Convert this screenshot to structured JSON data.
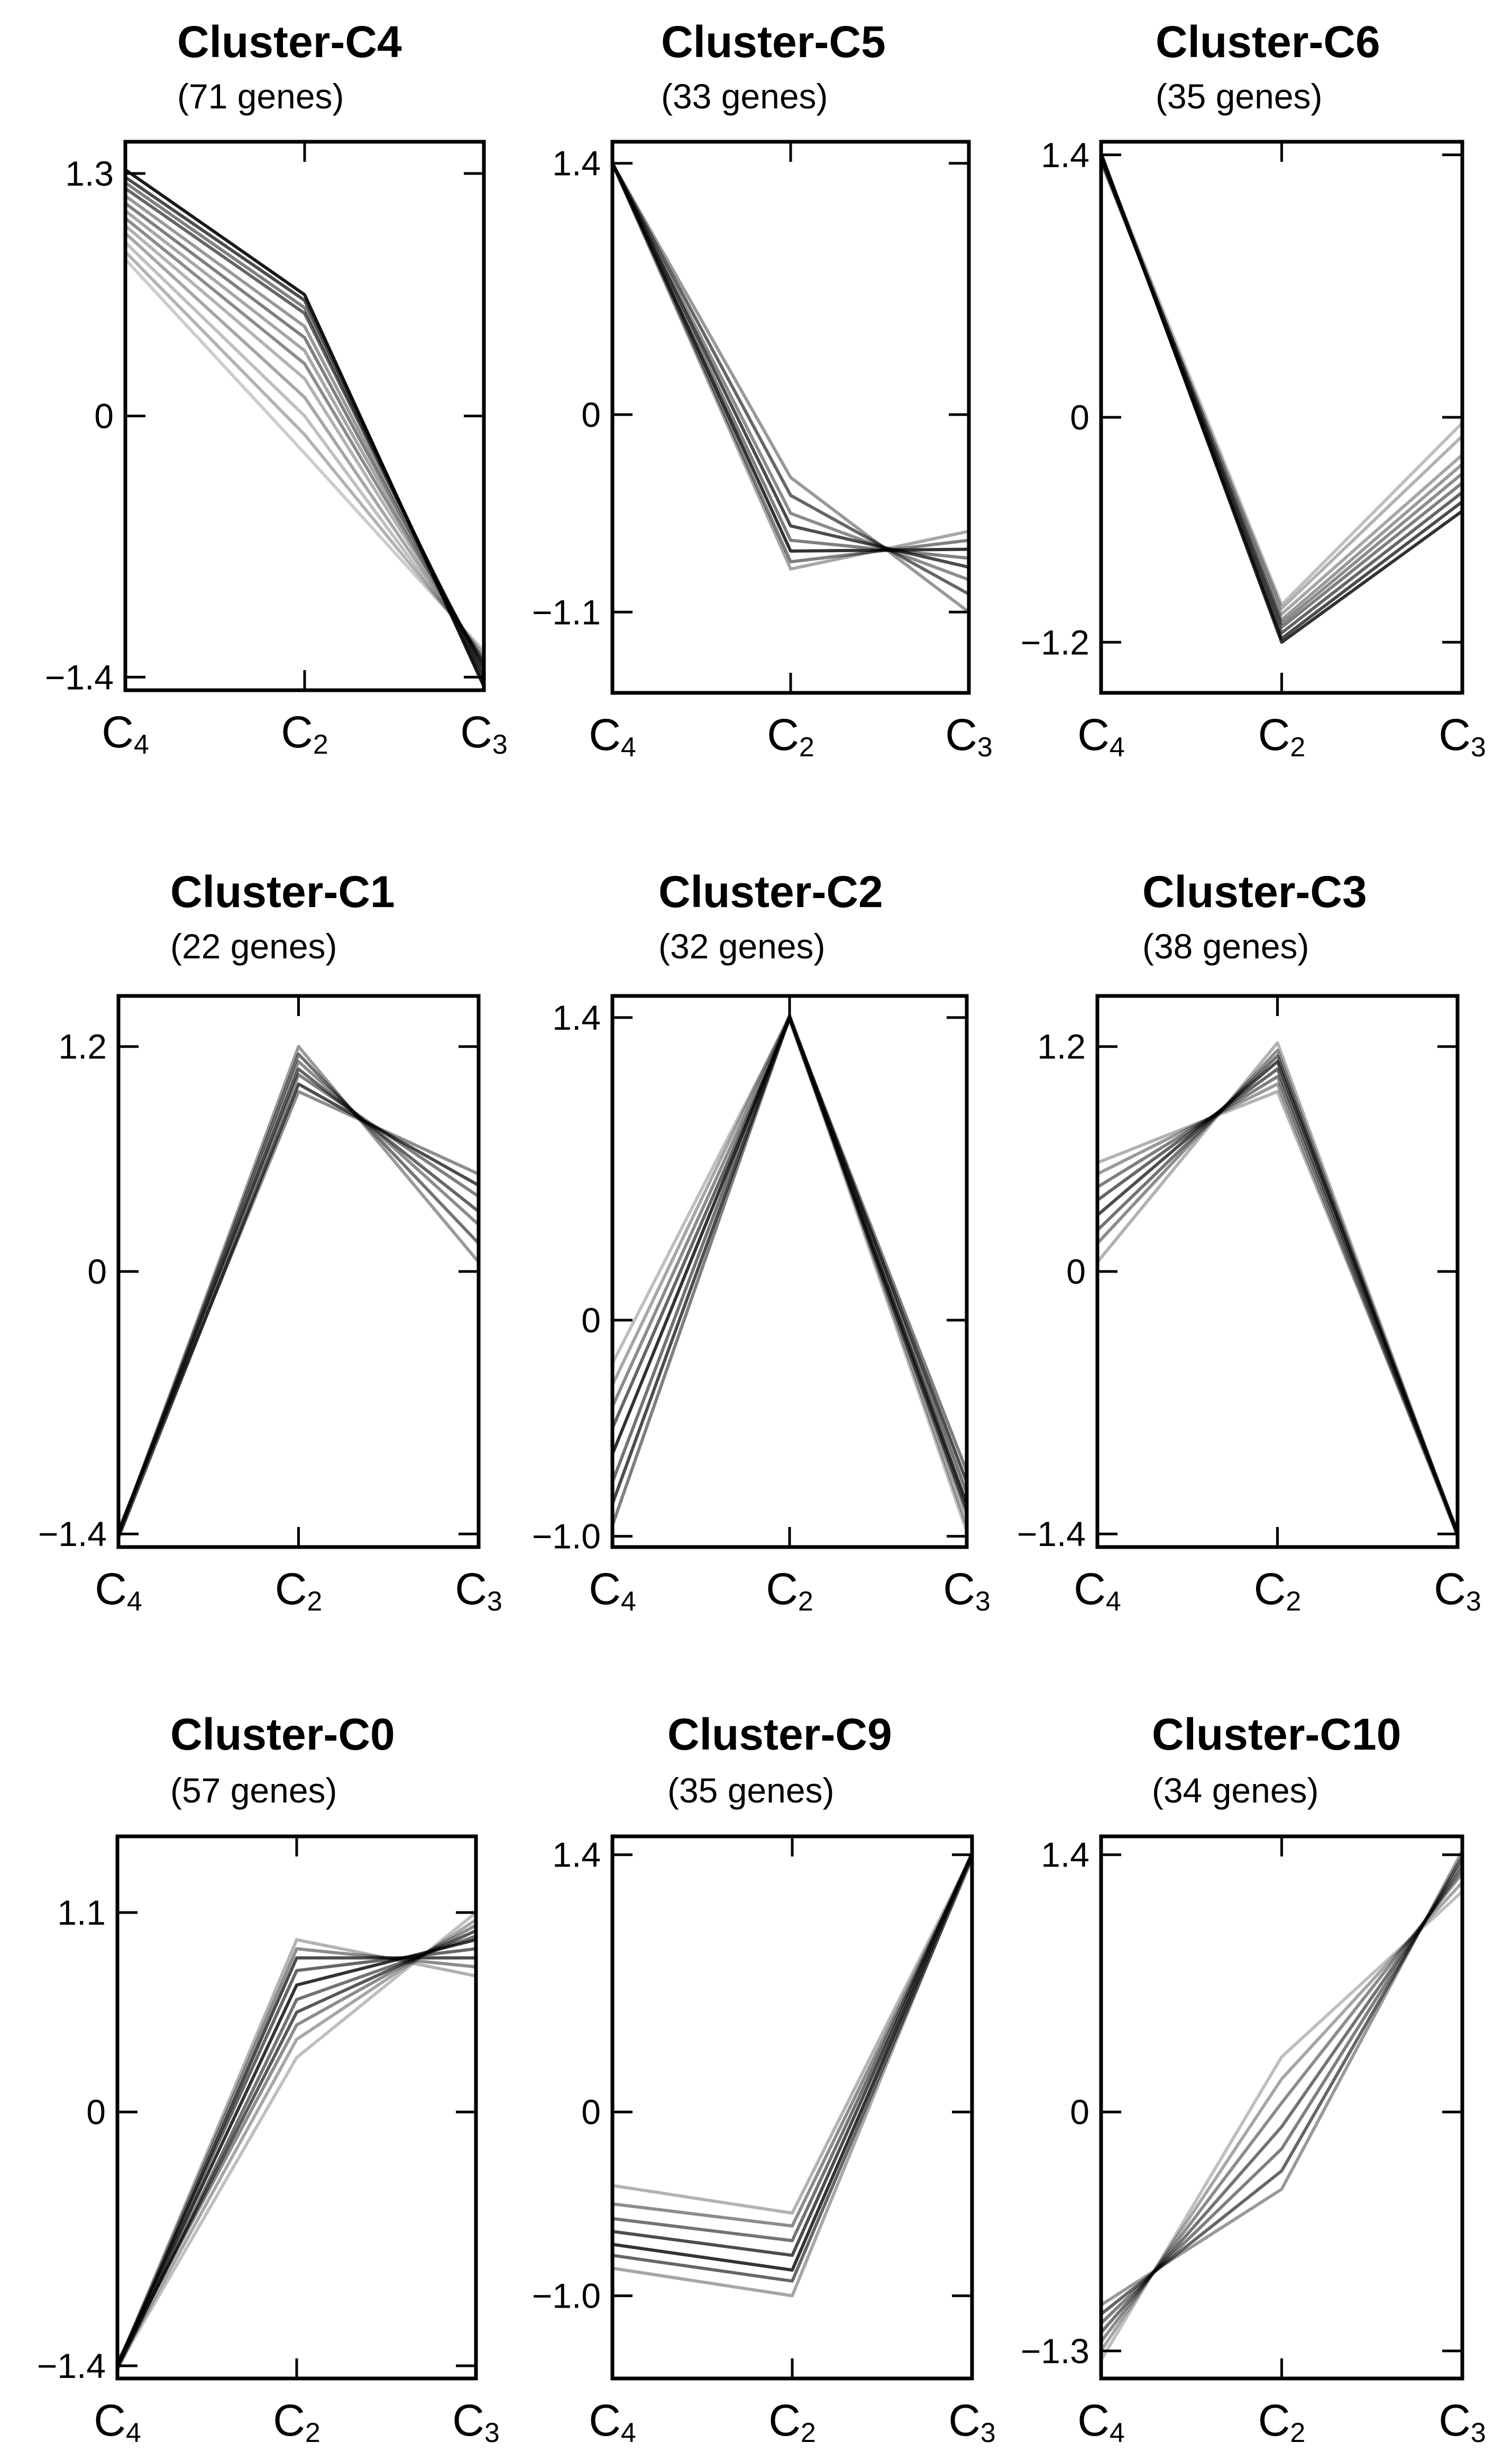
{
  "chart_data": [
    {
      "type": "line",
      "title": "Cluster-C4",
      "subtitle": "(71 genes)",
      "categories": [
        {
          "main": "C",
          "sub": "4"
        },
        {
          "main": "C",
          "sub": "2"
        },
        {
          "main": "C",
          "sub": "3"
        }
      ],
      "yticks": [
        "1.3",
        "0",
        "−1.4"
      ],
      "ytick_values": [
        1.3,
        0,
        -1.4
      ],
      "ylim": [
        -1.47,
        1.47
      ],
      "series": [
        {
          "values": [
            1.32,
            0.65,
            -1.45
          ]
        },
        {
          "values": [
            1.28,
            0.62,
            -1.42
          ]
        },
        {
          "values": [
            1.25,
            0.58,
            -1.4
          ]
        },
        {
          "values": [
            1.22,
            0.55,
            -1.38
          ]
        },
        {
          "values": [
            1.18,
            0.48,
            -1.36
          ]
        },
        {
          "values": [
            1.14,
            0.42,
            -1.35
          ]
        },
        {
          "values": [
            1.1,
            0.35,
            -1.34
          ]
        },
        {
          "values": [
            1.06,
            0.28,
            -1.33
          ]
        },
        {
          "values": [
            1.02,
            0.2,
            -1.32
          ]
        },
        {
          "values": [
            0.98,
            0.1,
            -1.31
          ]
        },
        {
          "values": [
            0.93,
            0.0,
            -1.3
          ]
        },
        {
          "values": [
            0.88,
            -0.1,
            -1.28
          ]
        },
        {
          "values": [
            0.84,
            -0.2,
            -1.26
          ]
        }
      ],
      "opacities": [
        0.9,
        0.7,
        0.5,
        0.6,
        0.4,
        0.5,
        0.35,
        0.45,
        0.3,
        0.35,
        0.25,
        0.3,
        0.2
      ]
    },
    {
      "type": "line",
      "title": "Cluster-C5",
      "subtitle": "(33 genes)",
      "categories": [
        {
          "main": "C",
          "sub": "4"
        },
        {
          "main": "C",
          "sub": "2"
        },
        {
          "main": "C",
          "sub": "3"
        }
      ],
      "yticks": [
        "1.4",
        "0",
        "−1.1"
      ],
      "ytick_values": [
        1.4,
        0,
        -1.1
      ],
      "ylim": [
        -1.55,
        1.52
      ],
      "series": [
        {
          "values": [
            1.4,
            -0.35,
            -1.1
          ]
        },
        {
          "values": [
            1.4,
            -0.45,
            -1.0
          ]
        },
        {
          "values": [
            1.4,
            -0.55,
            -0.92
          ]
        },
        {
          "values": [
            1.4,
            -0.62,
            -0.85
          ]
        },
        {
          "values": [
            1.4,
            -0.7,
            -0.8
          ]
        },
        {
          "values": [
            1.4,
            -0.76,
            -0.75
          ]
        },
        {
          "values": [
            1.4,
            -0.82,
            -0.7
          ]
        },
        {
          "values": [
            1.4,
            -0.86,
            -0.65
          ]
        }
      ],
      "opacities": [
        0.4,
        0.6,
        0.45,
        0.7,
        0.5,
        0.8,
        0.5,
        0.35
      ]
    },
    {
      "type": "line",
      "title": "Cluster-C6",
      "subtitle": "(35 genes)",
      "categories": [
        {
          "main": "C",
          "sub": "4"
        },
        {
          "main": "C",
          "sub": "2"
        },
        {
          "main": "C",
          "sub": "3"
        }
      ],
      "yticks": [
        "1.4",
        "0",
        "−1.2"
      ],
      "ytick_values": [
        1.4,
        0,
        -1.2
      ],
      "ylim": [
        -1.47,
        1.47
      ],
      "series": [
        {
          "values": [
            1.41,
            -1.2,
            -0.5
          ]
        },
        {
          "values": [
            1.4,
            -1.18,
            -0.45
          ]
        },
        {
          "values": [
            1.39,
            -1.15,
            -0.4
          ]
        },
        {
          "values": [
            1.38,
            -1.12,
            -0.35
          ]
        },
        {
          "values": [
            1.4,
            -1.1,
            -0.3
          ]
        },
        {
          "values": [
            1.37,
            -1.08,
            -0.25
          ]
        },
        {
          "values": [
            1.38,
            -1.05,
            -0.2
          ]
        },
        {
          "values": [
            1.36,
            -1.02,
            -0.1
          ]
        },
        {
          "values": [
            1.39,
            -1.0,
            -0.03
          ]
        }
      ],
      "opacities": [
        0.8,
        0.7,
        0.6,
        0.5,
        0.45,
        0.4,
        0.35,
        0.3,
        0.25
      ]
    },
    {
      "type": "line",
      "title": "Cluster-C1",
      "subtitle": "(22 genes)",
      "categories": [
        {
          "main": "C",
          "sub": "4"
        },
        {
          "main": "C",
          "sub": "2"
        },
        {
          "main": "C",
          "sub": "3"
        }
      ],
      "yticks": [
        "1.2",
        "0",
        "−1.4"
      ],
      "ytick_values": [
        1.2,
        0,
        -1.4
      ],
      "ylim": [
        -1.47,
        1.47
      ],
      "series": [
        {
          "values": [
            -1.4,
            1.2,
            0.05
          ]
        },
        {
          "values": [
            -1.4,
            1.16,
            0.15
          ]
        },
        {
          "values": [
            -1.41,
            1.12,
            0.25
          ]
        },
        {
          "values": [
            -1.39,
            1.08,
            0.32
          ]
        },
        {
          "values": [
            -1.4,
            1.05,
            0.4
          ]
        },
        {
          "values": [
            -1.42,
            1.0,
            0.46
          ]
        },
        {
          "values": [
            -1.38,
            0.96,
            0.52
          ]
        }
      ],
      "opacities": [
        0.4,
        0.55,
        0.45,
        0.6,
        0.5,
        0.7,
        0.45
      ]
    },
    {
      "type": "line",
      "title": "Cluster-C2",
      "subtitle": "(32 genes)",
      "categories": [
        {
          "main": "C",
          "sub": "4"
        },
        {
          "main": "C",
          "sub": "2"
        },
        {
          "main": "C",
          "sub": "3"
        }
      ],
      "yticks": [
        "1.4",
        "0",
        "−1.0"
      ],
      "ytick_values": [
        1.4,
        0,
        -1.0
      ],
      "ylim": [
        -1.05,
        1.5
      ],
      "series": [
        {
          "values": [
            -0.95,
            1.4,
            -0.7
          ]
        },
        {
          "values": [
            -0.85,
            1.4,
            -0.75
          ]
        },
        {
          "values": [
            -0.75,
            1.41,
            -0.8
          ]
        },
        {
          "values": [
            -0.62,
            1.4,
            -0.85
          ]
        },
        {
          "values": [
            -0.5,
            1.39,
            -0.88
          ]
        },
        {
          "values": [
            -0.4,
            1.4,
            -0.9
          ]
        },
        {
          "values": [
            -0.3,
            1.41,
            -0.95
          ]
        },
        {
          "values": [
            -0.2,
            1.4,
            -0.98
          ]
        }
      ],
      "opacities": [
        0.5,
        0.7,
        0.55,
        0.8,
        0.6,
        0.45,
        0.35,
        0.25
      ]
    },
    {
      "type": "line",
      "title": "Cluster-C3",
      "subtitle": "(38 genes)",
      "categories": [
        {
          "main": "C",
          "sub": "4"
        },
        {
          "main": "C",
          "sub": "2"
        },
        {
          "main": "C",
          "sub": "3"
        }
      ],
      "yticks": [
        "1.2",
        "0",
        "−1.4"
      ],
      "ytick_values": [
        1.2,
        0,
        -1.4
      ],
      "ylim": [
        -1.47,
        1.47
      ],
      "series": [
        {
          "values": [
            0.05,
            1.22,
            -1.4
          ]
        },
        {
          "values": [
            0.15,
            1.18,
            -1.4
          ]
        },
        {
          "values": [
            0.22,
            1.15,
            -1.41
          ]
        },
        {
          "values": [
            0.3,
            1.12,
            -1.39
          ]
        },
        {
          "values": [
            0.38,
            1.08,
            -1.4
          ]
        },
        {
          "values": [
            0.45,
            1.04,
            -1.4
          ]
        },
        {
          "values": [
            0.52,
            1.0,
            -1.41
          ]
        },
        {
          "values": [
            0.58,
            0.96,
            -1.39
          ]
        }
      ],
      "opacities": [
        0.3,
        0.45,
        0.55,
        0.7,
        0.6,
        0.5,
        0.4,
        0.3
      ]
    },
    {
      "type": "line",
      "title": "Cluster-C0",
      "subtitle": "(57 genes)",
      "categories": [
        {
          "main": "C",
          "sub": "4"
        },
        {
          "main": "C",
          "sub": "2"
        },
        {
          "main": "C",
          "sub": "3"
        }
      ],
      "yticks": [
        "1.1",
        "0",
        "−1.4"
      ],
      "ytick_values": [
        1.1,
        0,
        -1.4
      ],
      "ylim": [
        -1.47,
        1.52
      ],
      "series": [
        {
          "values": [
            -1.4,
            0.95,
            0.75
          ]
        },
        {
          "values": [
            -1.4,
            0.9,
            0.8
          ]
        },
        {
          "values": [
            -1.41,
            0.85,
            0.85
          ]
        },
        {
          "values": [
            -1.39,
            0.78,
            0.9
          ]
        },
        {
          "values": [
            -1.4,
            0.7,
            0.95
          ]
        },
        {
          "values": [
            -1.42,
            0.62,
            0.97
          ]
        },
        {
          "values": [
            -1.4,
            0.55,
            1.0
          ]
        },
        {
          "values": [
            -1.38,
            0.48,
            1.03
          ]
        },
        {
          "values": [
            -1.4,
            0.4,
            1.06
          ]
        },
        {
          "values": [
            -1.41,
            0.3,
            1.1
          ]
        }
      ],
      "opacities": [
        0.3,
        0.45,
        0.7,
        0.6,
        0.8,
        0.55,
        0.65,
        0.45,
        0.35,
        0.25
      ]
    },
    {
      "type": "line",
      "title": "Cluster-C9",
      "subtitle": "(35 genes)",
      "categories": [
        {
          "main": "C",
          "sub": "4"
        },
        {
          "main": "C",
          "sub": "2"
        },
        {
          "main": "C",
          "sub": "3"
        }
      ],
      "yticks": [
        "1.4",
        "0",
        "−1.0"
      ],
      "ytick_values": [
        1.4,
        0,
        -1.0
      ],
      "ylim": [
        -1.45,
        1.5
      ],
      "series": [
        {
          "values": [
            -0.4,
            -0.55,
            1.4
          ]
        },
        {
          "values": [
            -0.5,
            -0.62,
            1.39
          ]
        },
        {
          "values": [
            -0.58,
            -0.7,
            1.4
          ]
        },
        {
          "values": [
            -0.65,
            -0.78,
            1.41
          ]
        },
        {
          "values": [
            -0.72,
            -0.86,
            1.4
          ]
        },
        {
          "values": [
            -0.78,
            -0.92,
            1.38
          ]
        },
        {
          "values": [
            -0.85,
            -1.0,
            1.4
          ]
        }
      ],
      "opacities": [
        0.3,
        0.45,
        0.55,
        0.7,
        0.8,
        0.6,
        0.35
      ]
    },
    {
      "type": "line",
      "title": "Cluster-C10",
      "subtitle": "(34 genes)",
      "categories": [
        {
          "main": "C",
          "sub": "4"
        },
        {
          "main": "C",
          "sub": "2"
        },
        {
          "main": "C",
          "sub": "3"
        }
      ],
      "yticks": [
        "1.4",
        "0",
        "−1.3"
      ],
      "ytick_values": [
        1.4,
        0,
        -1.3
      ],
      "ylim": [
        -1.45,
        1.5
      ],
      "series": [
        {
          "values": [
            -1.35,
            0.3,
            1.2
          ]
        },
        {
          "values": [
            -1.3,
            0.18,
            1.25
          ]
        },
        {
          "values": [
            -1.25,
            0.05,
            1.3
          ]
        },
        {
          "values": [
            -1.2,
            -0.08,
            1.33
          ]
        },
        {
          "values": [
            -1.15,
            -0.2,
            1.36
          ]
        },
        {
          "values": [
            -1.1,
            -0.32,
            1.39
          ]
        },
        {
          "values": [
            -1.05,
            -0.42,
            1.42
          ]
        }
      ],
      "opacities": [
        0.25,
        0.35,
        0.45,
        0.55,
        0.5,
        0.6,
        0.4
      ]
    }
  ]
}
